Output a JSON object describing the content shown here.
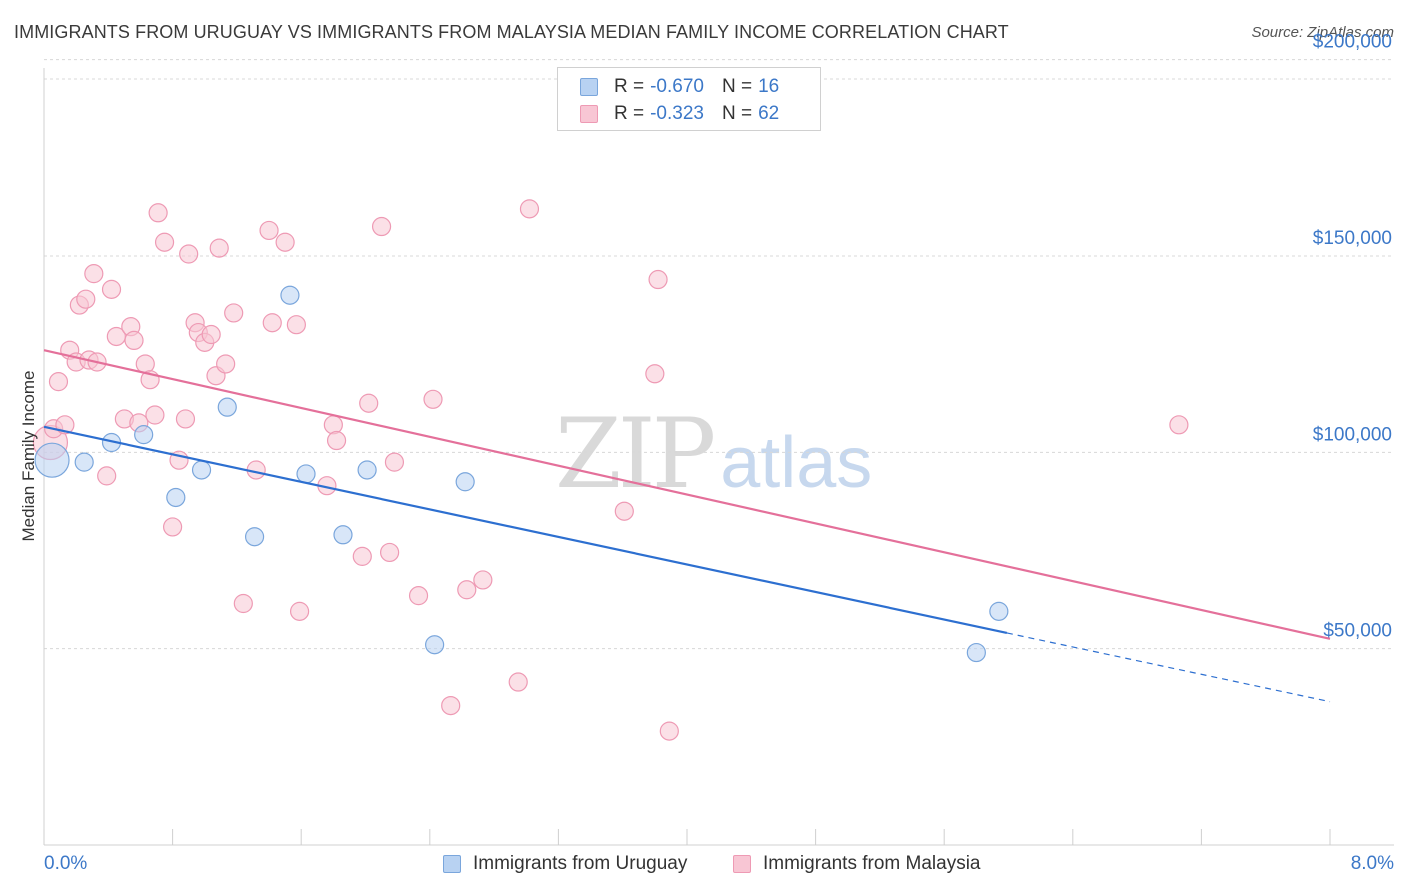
{
  "title": "IMMIGRANTS FROM URUGUAY VS IMMIGRANTS FROM MALAYSIA MEDIAN FAMILY INCOME CORRELATION CHART",
  "source": "Source: ZipAtlas.com",
  "watermark": {
    "zip": "ZIP",
    "atlas": "atlas"
  },
  "legend": {
    "rows": [
      {
        "r_label": "R =",
        "r_value": "-0.670",
        "n_label": "N =",
        "n_value": "16"
      },
      {
        "r_label": "R =",
        "r_value": "-0.323",
        "n_label": "N =",
        "n_value": "62"
      }
    ]
  },
  "colors": {
    "uruguay_fill": "#b8d2f2",
    "uruguay_stroke": "#7aa6dc",
    "uruguay_line": "#2d6fd0",
    "malaysia_fill": "#f8c6d4",
    "malaysia_stroke": "#ee9ab4",
    "malaysia_line": "#e4709a",
    "grid": "#d8d8d8",
    "axis_text": "#3c78c8"
  },
  "chart_data": {
    "type": "scatter",
    "title": "IMMIGRANTS FROM URUGUAY VS IMMIGRANTS FROM MALAYSIA MEDIAN FAMILY INCOME CORRELATION CHART",
    "xlabel": "",
    "ylabel": "Median Family Income",
    "xlim": [
      0,
      8
    ],
    "ylim": [
      0,
      205000
    ],
    "x_tick_labels": [
      "0.0%",
      "8.0%"
    ],
    "y_ticks": [
      50000,
      100000,
      150000,
      200000
    ],
    "y_tick_labels": [
      "$50,000",
      "$100,000",
      "$150,000",
      "$200,000"
    ],
    "grid": "horizontal dashed",
    "legend_position": "top-center",
    "series": [
      {
        "name": "Immigrants from Uruguay",
        "color": "#b8d2f2",
        "r": -0.67,
        "n": 16,
        "points": [
          [
            0.05,
            98000
          ],
          [
            0.25,
            97500
          ],
          [
            0.42,
            102500
          ],
          [
            0.62,
            104500
          ],
          [
            0.82,
            88500
          ],
          [
            0.98,
            95500
          ],
          [
            1.14,
            111500
          ],
          [
            1.31,
            78500
          ],
          [
            1.53,
            140000
          ],
          [
            1.63,
            94500
          ],
          [
            1.86,
            79000
          ],
          [
            2.01,
            95500
          ],
          [
            2.43,
            51000
          ],
          [
            2.62,
            92500
          ],
          [
            5.8,
            49000
          ],
          [
            5.94,
            59500
          ]
        ],
        "trend": {
          "x": [
            0.0,
            5.99
          ],
          "y": [
            106500,
            54000
          ]
        },
        "trend_dashed": {
          "x": [
            5.99,
            8.0
          ],
          "y": [
            54000,
            36500
          ]
        }
      },
      {
        "name": "Immigrants from Malaysia",
        "color": "#f8c6d4",
        "r": -0.323,
        "n": 62,
        "points": [
          [
            0.04,
            102500
          ],
          [
            0.06,
            106000
          ],
          [
            0.09,
            118000
          ],
          [
            0.13,
            107000
          ],
          [
            0.16,
            126000
          ],
          [
            0.2,
            123000
          ],
          [
            0.22,
            137500
          ],
          [
            0.26,
            139000
          ],
          [
            0.28,
            123500
          ],
          [
            0.31,
            145500
          ],
          [
            0.33,
            123000
          ],
          [
            0.39,
            94000
          ],
          [
            0.42,
            141500
          ],
          [
            0.45,
            129500
          ],
          [
            0.5,
            108500
          ],
          [
            0.54,
            132000
          ],
          [
            0.56,
            128500
          ],
          [
            0.59,
            107500
          ],
          [
            0.63,
            122500
          ],
          [
            0.66,
            118500
          ],
          [
            0.69,
            109500
          ],
          [
            0.71,
            161000
          ],
          [
            0.75,
            153500
          ],
          [
            0.8,
            81000
          ],
          [
            0.84,
            98000
          ],
          [
            0.88,
            108500
          ],
          [
            0.9,
            150500
          ],
          [
            0.94,
            133000
          ],
          [
            0.96,
            130500
          ],
          [
            1.0,
            128000
          ],
          [
            1.04,
            130000
          ],
          [
            1.07,
            119500
          ],
          [
            1.09,
            152000
          ],
          [
            1.13,
            122500
          ],
          [
            1.18,
            135500
          ],
          [
            1.24,
            61500
          ],
          [
            1.32,
            95500
          ],
          [
            1.4,
            156500
          ],
          [
            1.42,
            133000
          ],
          [
            1.5,
            153500
          ],
          [
            1.57,
            132500
          ],
          [
            1.59,
            59500
          ],
          [
            1.76,
            91500
          ],
          [
            1.8,
            107000
          ],
          [
            1.82,
            103000
          ],
          [
            1.98,
            73500
          ],
          [
            2.02,
            112500
          ],
          [
            2.1,
            157500
          ],
          [
            2.15,
            74500
          ],
          [
            2.18,
            97500
          ],
          [
            2.33,
            63500
          ],
          [
            2.42,
            113500
          ],
          [
            2.53,
            35500
          ],
          [
            2.63,
            65000
          ],
          [
            2.73,
            67500
          ],
          [
            2.95,
            41500
          ],
          [
            3.02,
            162000
          ],
          [
            3.61,
            85000
          ],
          [
            3.8,
            120000
          ],
          [
            3.82,
            144000
          ],
          [
            3.89,
            29000
          ],
          [
            7.06,
            107000
          ]
        ],
        "trend": {
          "x": [
            0.0,
            8.0
          ],
          "y": [
            126000,
            52500
          ]
        }
      }
    ]
  },
  "bottom_legend": {
    "uruguay": "Immigrants from Uruguay",
    "malaysia": "Immigrants from Malaysia"
  }
}
